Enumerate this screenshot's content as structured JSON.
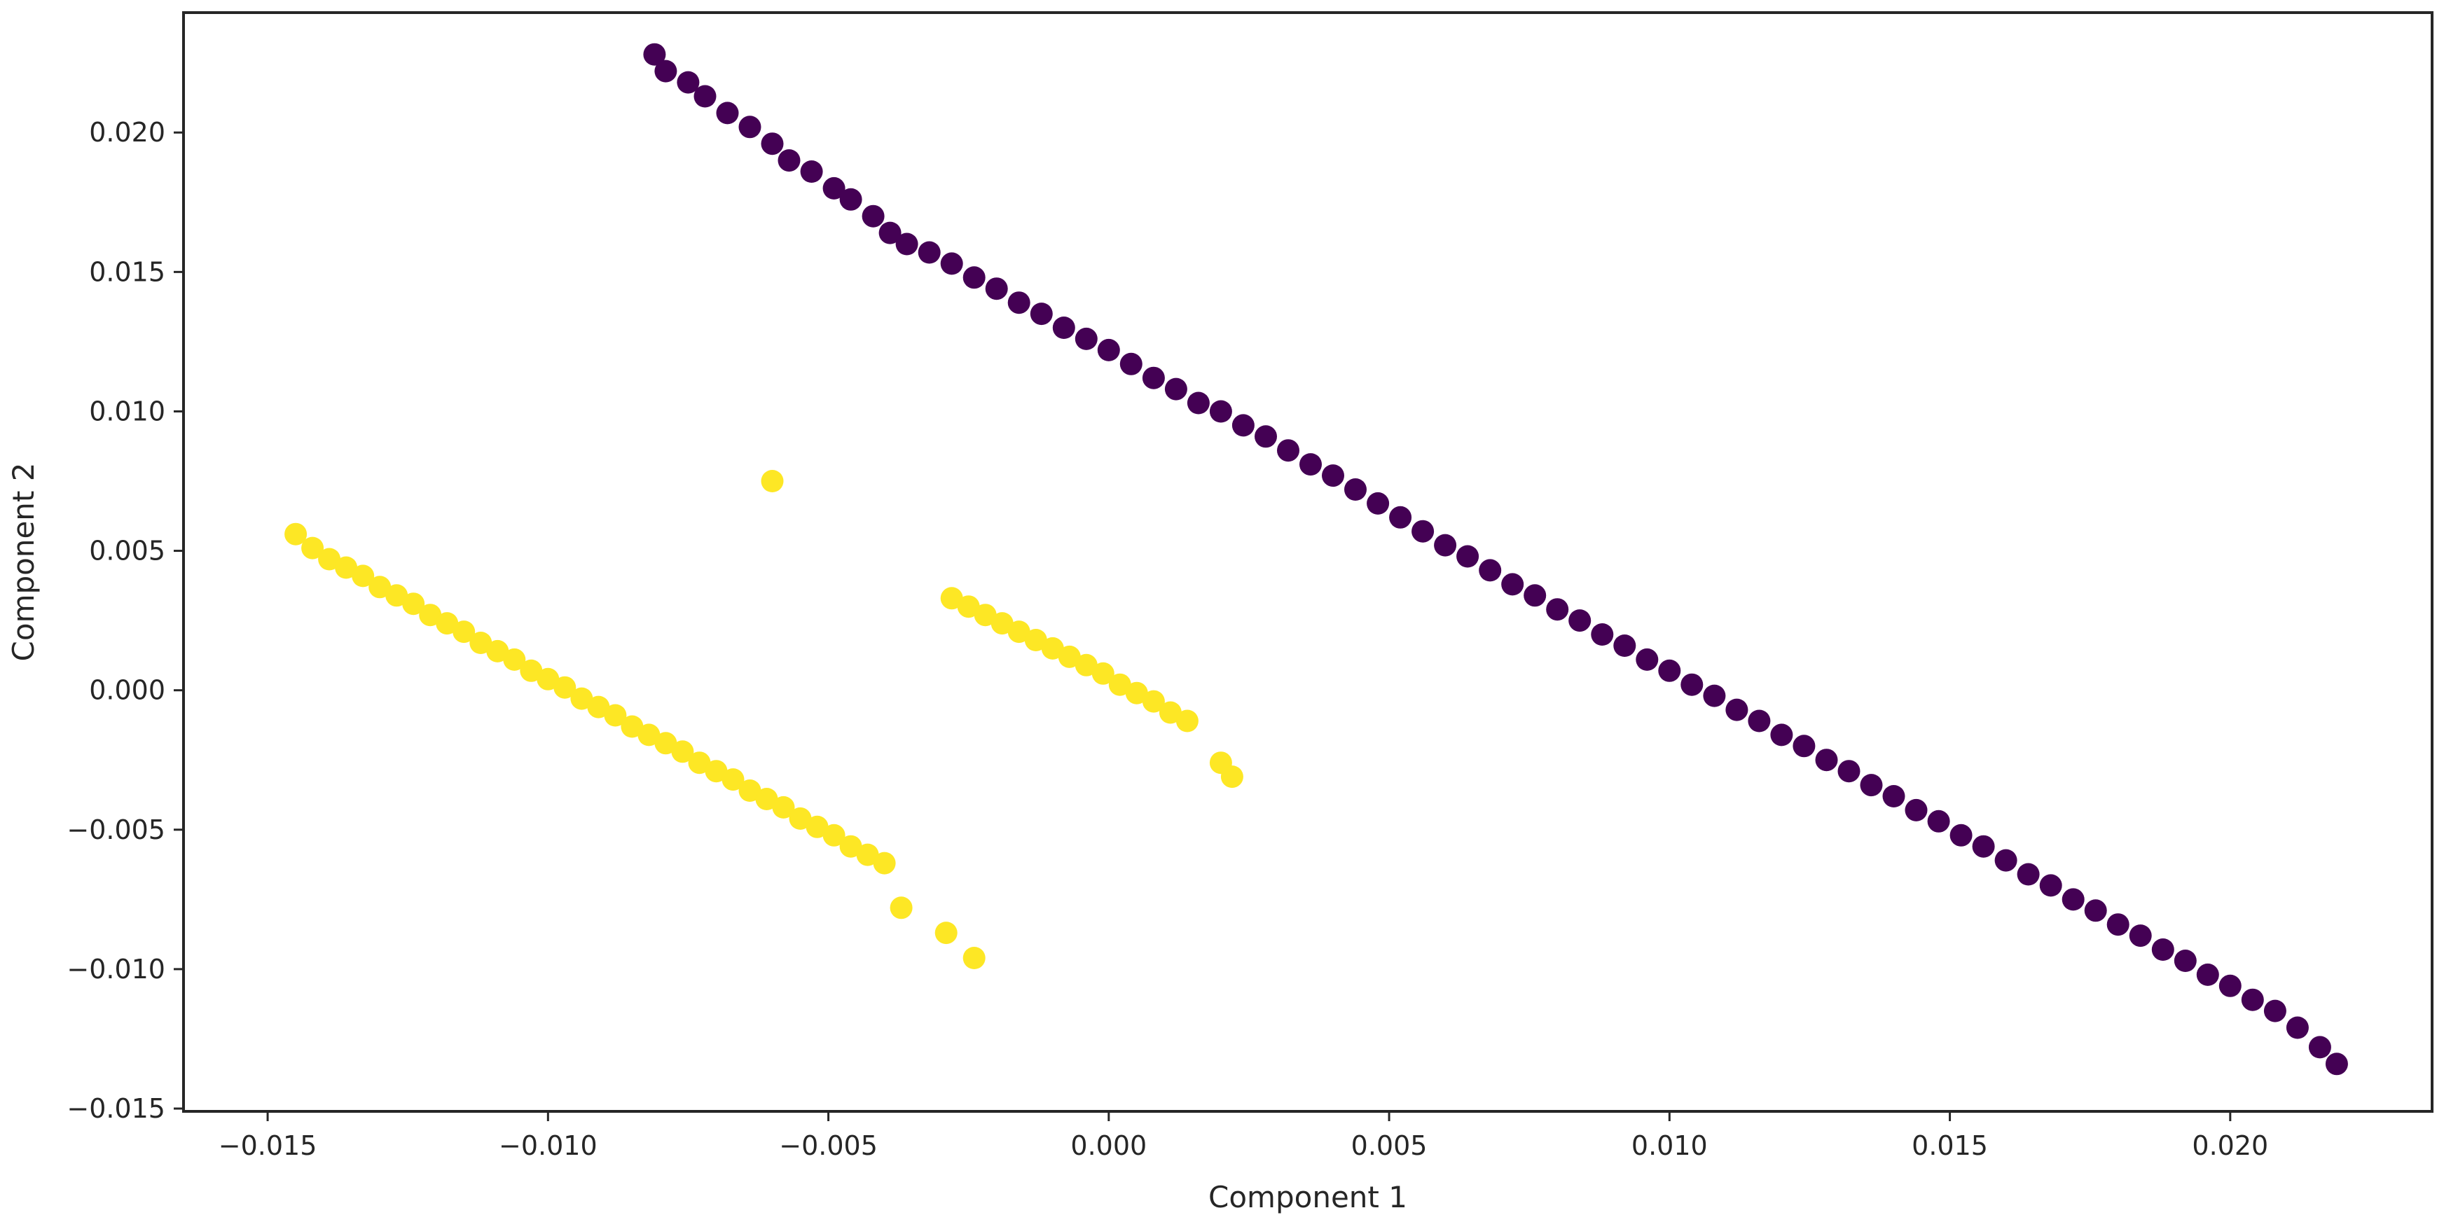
{
  "chart_data": {
    "type": "scatter",
    "title": "",
    "xlabel": "Component 1",
    "ylabel": "Component 2",
    "xlim": [
      -0.0165,
      0.0236
    ],
    "ylim": [
      -0.0151,
      0.0243
    ],
    "xticks": [
      -0.015,
      -0.01,
      -0.005,
      0.0,
      0.005,
      0.01,
      0.015,
      0.02
    ],
    "xtick_labels": [
      "−0.015",
      "−0.010",
      "−0.005",
      "0.000",
      "0.005",
      "0.010",
      "0.015",
      "0.020"
    ],
    "yticks": [
      -0.015,
      -0.01,
      -0.005,
      0.0,
      0.005,
      0.01,
      0.015,
      0.02
    ],
    "ytick_labels": [
      "−0.015",
      "−0.010",
      "−0.005",
      "0.000",
      "0.005",
      "0.010",
      "0.015",
      "0.020"
    ],
    "grid": false,
    "legend": null,
    "colors": {
      "cluster_0": "#440154",
      "cluster_1": "#fde725",
      "axes": "#262626"
    },
    "series": [
      {
        "color": "#440154",
        "x": [
          -0.0081,
          -0.0079,
          -0.0075,
          -0.0072,
          -0.0068,
          -0.0064,
          -0.006,
          -0.0057,
          -0.0053,
          -0.0049,
          -0.0046,
          -0.0042,
          -0.0039,
          -0.0036,
          -0.0032,
          -0.0028,
          -0.0024,
          -0.002,
          -0.0016,
          -0.0012,
          -0.0008,
          -0.0004,
          0.0,
          0.0004,
          0.0008,
          0.0012,
          0.0016,
          0.002,
          0.0024,
          0.0028,
          0.0032,
          0.0036,
          0.004,
          0.0044,
          0.0048,
          0.0052,
          0.0056,
          0.006,
          0.0064,
          0.0068,
          0.0072,
          0.0076,
          0.008,
          0.0084,
          0.0088,
          0.0092,
          0.0096,
          0.01,
          0.0104,
          0.0108,
          0.0112,
          0.0116,
          0.012,
          0.0124,
          0.0128,
          0.0132,
          0.0136,
          0.014,
          0.0144,
          0.0148,
          0.0152,
          0.0156,
          0.016,
          0.0164,
          0.0168,
          0.0172,
          0.0176,
          0.018,
          0.0184,
          0.0188,
          0.0192,
          0.0196,
          0.02,
          0.0204,
          0.0208,
          0.0212,
          0.0216,
          0.0219
        ],
        "y": [
          0.0228,
          0.0222,
          0.0218,
          0.0213,
          0.0207,
          0.0202,
          0.0196,
          0.019,
          0.0186,
          0.018,
          0.0176,
          0.017,
          0.0164,
          0.016,
          0.0157,
          0.0153,
          0.0148,
          0.0144,
          0.0139,
          0.0135,
          0.013,
          0.0126,
          0.0122,
          0.0117,
          0.0112,
          0.0108,
          0.0103,
          0.01,
          0.0095,
          0.0091,
          0.0086,
          0.0081,
          0.0077,
          0.0072,
          0.0067,
          0.0062,
          0.0057,
          0.0052,
          0.0048,
          0.0043,
          0.0038,
          0.0034,
          0.0029,
          0.0025,
          0.002,
          0.0016,
          0.0011,
          0.0007,
          0.0002,
          -0.0002,
          -0.0007,
          -0.0011,
          -0.0016,
          -0.002,
          -0.0025,
          -0.0029,
          -0.0034,
          -0.0038,
          -0.0043,
          -0.0047,
          -0.0052,
          -0.0056,
          -0.0061,
          -0.0066,
          -0.007,
          -0.0075,
          -0.0079,
          -0.0084,
          -0.0088,
          -0.0093,
          -0.0097,
          -0.0102,
          -0.0106,
          -0.0111,
          -0.0115,
          -0.0121,
          -0.0128,
          -0.0134
        ]
      },
      {
        "color": "#fde725",
        "x": [
          -0.0145,
          -0.0142,
          -0.0139,
          -0.0136,
          -0.0133,
          -0.013,
          -0.0127,
          -0.0124,
          -0.0121,
          -0.0118,
          -0.0115,
          -0.0112,
          -0.0109,
          -0.0106,
          -0.0103,
          -0.01,
          -0.0097,
          -0.0094,
          -0.0091,
          -0.0088,
          -0.0085,
          -0.0082,
          -0.0079,
          -0.0076,
          -0.0073,
          -0.007,
          -0.0067,
          -0.0064,
          -0.0061,
          -0.0058,
          -0.0055,
          -0.0052,
          -0.0049,
          -0.0046,
          -0.0043,
          -0.004,
          -0.0037,
          -0.0029,
          -0.0024,
          -0.006,
          -0.0028,
          -0.0025,
          -0.0022,
          -0.0019,
          -0.0016,
          -0.0013,
          -0.001,
          -0.0007,
          -0.0004,
          -0.0001,
          0.0002,
          0.0005,
          0.0008,
          0.0011,
          0.0014,
          0.002,
          0.0022
        ],
        "y": [
          0.0056,
          0.0051,
          0.0047,
          0.0044,
          0.0041,
          0.0037,
          0.0034,
          0.0031,
          0.0027,
          0.0024,
          0.0021,
          0.0017,
          0.0014,
          0.0011,
          0.0007,
          0.0004,
          0.0001,
          -0.0003,
          -0.0006,
          -0.0009,
          -0.0013,
          -0.0016,
          -0.0019,
          -0.0022,
          -0.0026,
          -0.0029,
          -0.0032,
          -0.0036,
          -0.0039,
          -0.0042,
          -0.0046,
          -0.0049,
          -0.0052,
          -0.0056,
          -0.0059,
          -0.0062,
          -0.0078,
          -0.0087,
          -0.0096,
          0.0075,
          0.0033,
          0.003,
          0.0027,
          0.0024,
          0.0021,
          0.0018,
          0.0015,
          0.0012,
          0.0009,
          0.0006,
          0.0002,
          -0.0001,
          -0.0004,
          -0.0008,
          -0.0011,
          -0.0026,
          -0.0031
        ]
      }
    ]
  }
}
